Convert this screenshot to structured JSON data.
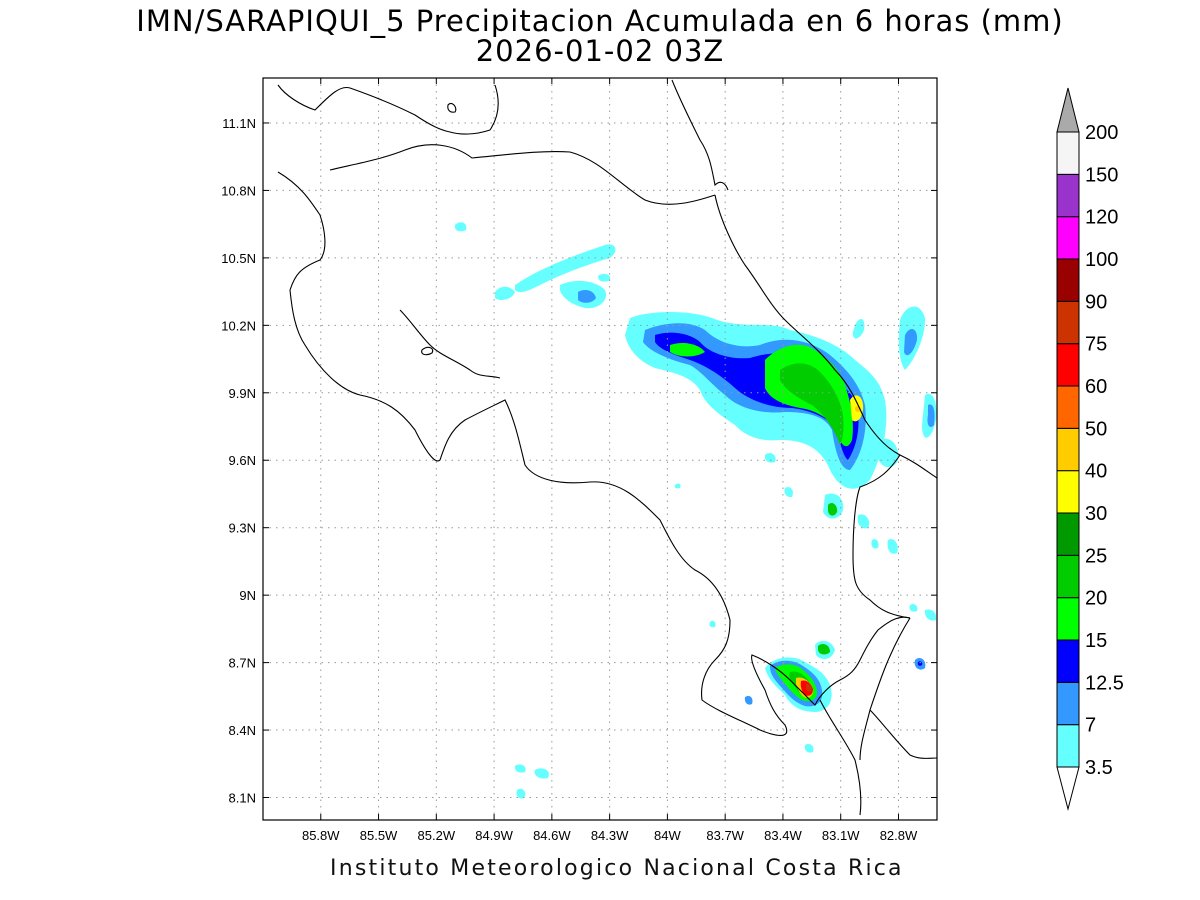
{
  "title": "IMN/SARAPIQUI_5 Precipitacion Acumulada en 6 horas (mm)",
  "subtitle": "2026-01-02 03Z",
  "footer": "Instituto Meteorologico Nacional Costa Rica",
  "map": {
    "lon_range": [
      -86.1,
      -82.6
    ],
    "lat_range": [
      8.0,
      11.3
    ],
    "lon_ticks": [
      -85.8,
      -85.5,
      -85.2,
      -84.9,
      -84.6,
      -84.3,
      -84.0,
      -83.7,
      -83.4,
      -83.1,
      -82.8
    ],
    "lon_tick_labels": [
      "85.8W",
      "85.5W",
      "85.2W",
      "84.9W",
      "84.6W",
      "84.3W",
      "84W",
      "83.7W",
      "83.4W",
      "83.1W",
      "82.8W"
    ],
    "lat_ticks": [
      8.1,
      8.4,
      8.7,
      9.0,
      9.3,
      9.6,
      9.9,
      10.2,
      10.5,
      10.8,
      11.1
    ],
    "lat_tick_labels": [
      "8.1N",
      "8.4N",
      "8.7N",
      "9N",
      "9.3N",
      "9.6N",
      "9.9N",
      "10.2N",
      "10.5N",
      "10.8N",
      "11.1N"
    ],
    "grid": "dotted"
  },
  "colorbar": {
    "labels": [
      "3.5",
      "7",
      "12.5",
      "15",
      "20",
      "25",
      "30",
      "40",
      "50",
      "60",
      "75",
      "90",
      "100",
      "120",
      "150",
      "200"
    ],
    "colors": [
      "#66ffff",
      "#3399ff",
      "#0000ff",
      "#00ff00",
      "#00cc00",
      "#009900",
      "#ffff00",
      "#ffcc00",
      "#ff6600",
      "#ff0000",
      "#cc3300",
      "#990000",
      "#ff00ff",
      "#9933cc",
      "#f5f5f5"
    ],
    "overflow_color": "#aaaaaa",
    "underflow_color": "#ffffff",
    "placement": "right"
  }
}
